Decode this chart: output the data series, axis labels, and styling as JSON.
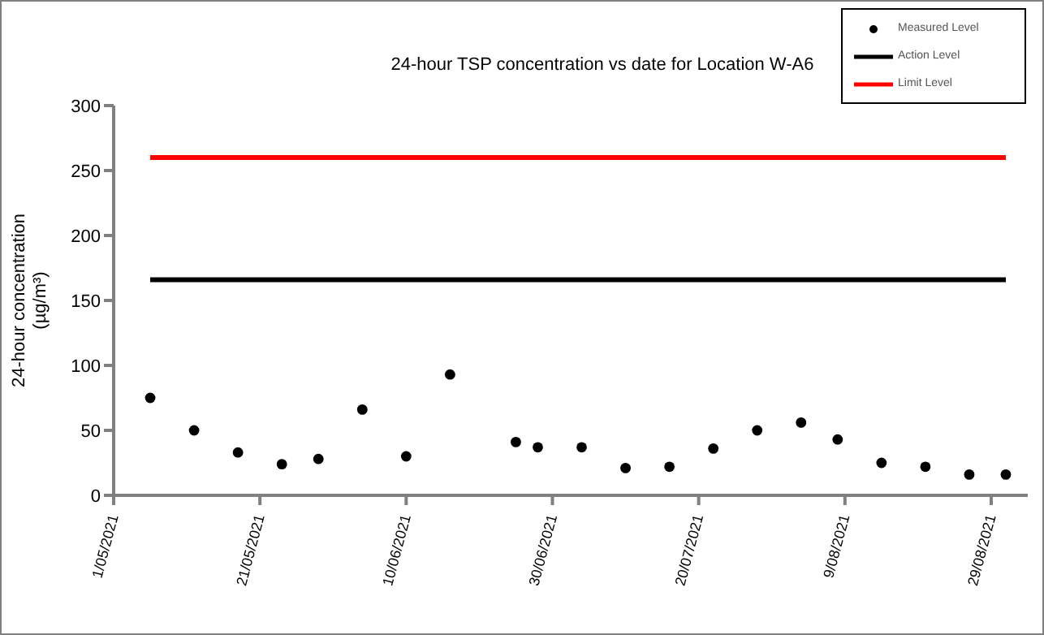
{
  "chart_data": {
    "type": "scatter",
    "title": "24-hour TSP concentration vs date for Location W-A6",
    "ylabel": "24-hour concentration\n(µg/m³)",
    "xlim": [
      "2021-05-01",
      "2021-09-03"
    ],
    "xticks": [
      {
        "value": "2021-05-01",
        "label": "1/05/2021"
      },
      {
        "value": "2021-05-21",
        "label": "21/05/2021"
      },
      {
        "value": "2021-06-10",
        "label": "10/06/2021"
      },
      {
        "value": "2021-06-30",
        "label": "30/06/2021"
      },
      {
        "value": "2021-07-20",
        "label": "20/07/2021"
      },
      {
        "value": "2021-08-09",
        "label": "9/08/2021"
      },
      {
        "value": "2021-08-29",
        "label": "29/08/2021"
      }
    ],
    "ylim": [
      0,
      300
    ],
    "yticks": [
      0,
      50,
      100,
      150,
      200,
      250,
      300
    ],
    "grid": false,
    "legend": "top right",
    "series": [
      {
        "name": "Measured Level",
        "marker": "circle",
        "color": "#000000",
        "x": [
          "2021-05-06",
          "2021-05-12",
          "2021-05-18",
          "2021-05-24",
          "2021-05-29",
          "2021-06-04",
          "2021-06-10",
          "2021-06-16",
          "2021-06-25",
          "2021-06-28",
          "2021-07-04",
          "2021-07-10",
          "2021-07-16",
          "2021-07-22",
          "2021-07-28",
          "2021-08-03",
          "2021-08-08",
          "2021-08-14",
          "2021-08-20",
          "2021-08-26",
          "2021-08-31"
        ],
        "values": [
          75,
          50,
          33,
          24,
          28,
          66,
          30,
          93,
          41,
          37,
          37,
          21,
          22,
          36,
          50,
          56,
          43,
          25,
          22,
          16,
          16
        ]
      },
      {
        "name": "Action Level",
        "type": "line",
        "marker": "none",
        "line_style": "solid",
        "color": "#000000",
        "x": [
          "2021-05-06",
          "2021-08-31"
        ],
        "values": [
          166,
          166
        ]
      },
      {
        "name": "Limit Level",
        "type": "line",
        "marker": "none",
        "line_style": "solid",
        "color": "#ff0000",
        "x": [
          "2021-05-06",
          "2021-08-31"
        ],
        "values": [
          260,
          260
        ]
      }
    ]
  }
}
